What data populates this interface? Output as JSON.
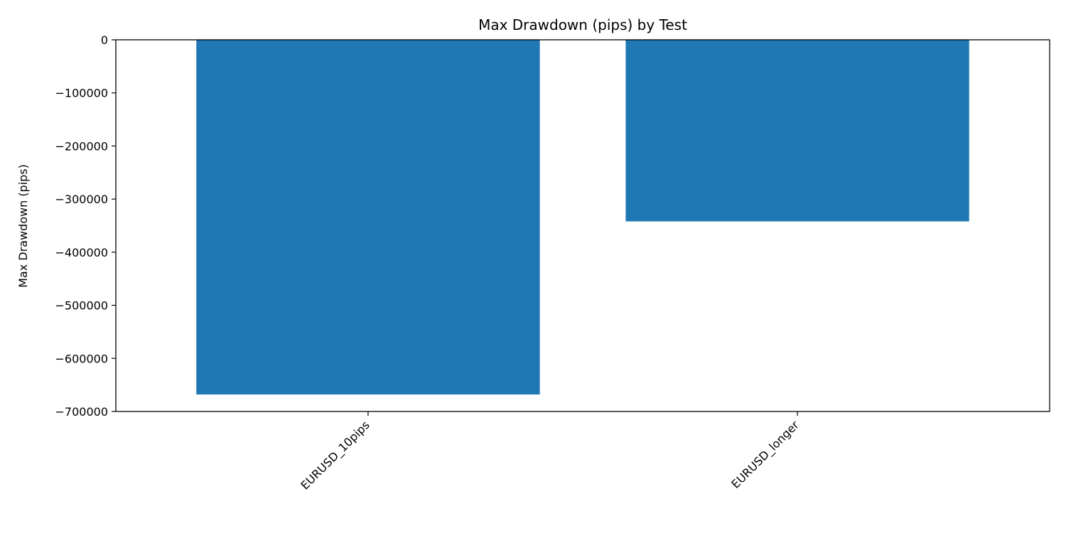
{
  "chart_data": {
    "type": "bar",
    "title": "Max Drawdown (pips) by Test",
    "xlabel": "",
    "ylabel": "Max Drawdown (pips)",
    "categories": [
      "EURUSD_10pips",
      "EURUSD_longer"
    ],
    "values": [
      -668000,
      -342000
    ],
    "ylim": [
      -700000,
      0
    ],
    "yticks": [
      0,
      -100000,
      -200000,
      -300000,
      -400000,
      -500000,
      -600000,
      -700000
    ],
    "ytick_labels": [
      "0",
      "−100000",
      "−200000",
      "−300000",
      "−400000",
      "−500000",
      "−600000",
      "−700000"
    ],
    "bar_color": "#1f77b4",
    "grid": false,
    "xtick_rotation": "45 degrees"
  }
}
